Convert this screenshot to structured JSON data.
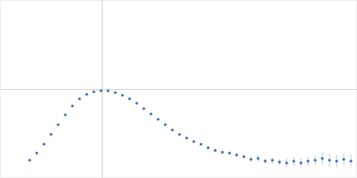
{
  "chart_data": {
    "type": "scatter",
    "color": "#3d6bb8",
    "marker": "circle",
    "grid": true,
    "tick_labels": false,
    "xlim": [
      0,
      3.5
    ],
    "ylim": [
      0,
      2
    ],
    "xticks": [
      1
    ],
    "yticks": [
      1
    ],
    "x": [
      0.29,
      0.36,
      0.43,
      0.5,
      0.57,
      0.64,
      0.71,
      0.78,
      0.85,
      0.92,
      0.99,
      1.06,
      1.13,
      1.2,
      1.27,
      1.34,
      1.41,
      1.48,
      1.55,
      1.62,
      1.69,
      1.76,
      1.83,
      1.9,
      1.97,
      2.04,
      2.11,
      2.18,
      2.25,
      2.32,
      2.39,
      2.46,
      2.53,
      2.6,
      2.67,
      2.74,
      2.81,
      2.88,
      2.95,
      3.02,
      3.09,
      3.16,
      3.23,
      3.3,
      3.37,
      3.44
    ],
    "values": [
      0.2,
      0.28,
      0.38,
      0.49,
      0.6,
      0.71,
      0.81,
      0.89,
      0.94,
      0.97,
      0.98,
      0.98,
      0.96,
      0.93,
      0.89,
      0.84,
      0.78,
      0.72,
      0.66,
      0.6,
      0.54,
      0.49,
      0.45,
      0.41,
      0.38,
      0.34,
      0.31,
      0.29,
      0.28,
      0.26,
      0.24,
      0.21,
      0.22,
      0.19,
      0.2,
      0.18,
      0.17,
      0.19,
      0.17,
      0.19,
      0.2,
      0.22,
      0.2,
      0.19,
      0.21,
      0.19
    ],
    "errors": [
      0.005,
      0.005,
      0.005,
      0.005,
      0.005,
      0.005,
      0.005,
      0.005,
      0.005,
      0.005,
      0.005,
      0.005,
      0.005,
      0.005,
      0.005,
      0.005,
      0.005,
      0.005,
      0.005,
      0.01,
      0.01,
      0.01,
      0.01,
      0.01,
      0.01,
      0.02,
      0.02,
      0.02,
      0.02,
      0.02,
      0.02,
      0.035,
      0.035,
      0.035,
      0.035,
      0.035,
      0.05,
      0.05,
      0.05,
      0.05,
      0.05,
      0.07,
      0.07,
      0.07,
      0.07,
      0.07
    ]
  }
}
